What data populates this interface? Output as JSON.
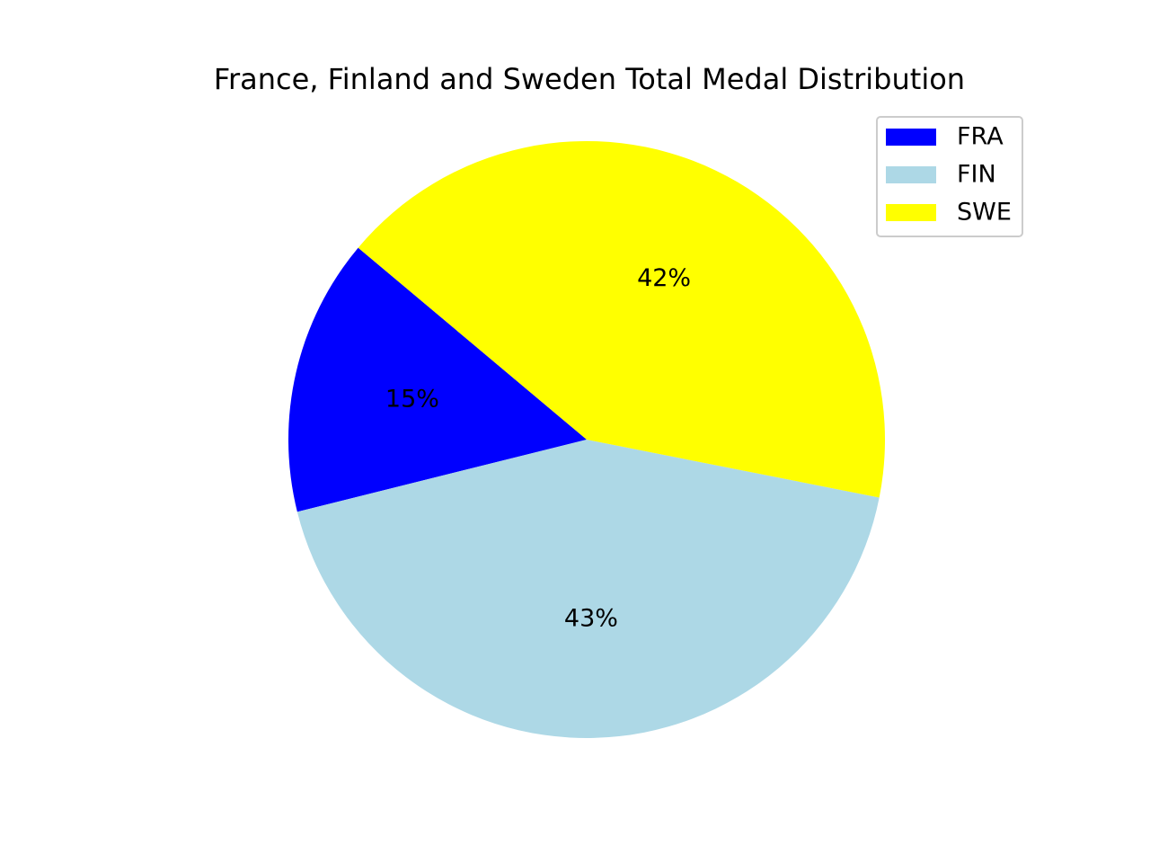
{
  "chart_data": {
    "type": "pie",
    "title": "France, Finland and Sweden Total Medal Distribution",
    "slices": [
      {
        "name": "FRA",
        "value": 15,
        "label": "15%",
        "color": "#0000ff"
      },
      {
        "name": "FIN",
        "value": 43,
        "label": "43%",
        "color": "#add8e6"
      },
      {
        "name": "SWE",
        "value": 42,
        "label": "42%",
        "color": "#ffff00"
      }
    ],
    "start_angle_deg": 140,
    "direction": "counterclockwise",
    "legend": {
      "position": "top-right",
      "entries": [
        "FRA",
        "FIN",
        "SWE"
      ]
    }
  }
}
